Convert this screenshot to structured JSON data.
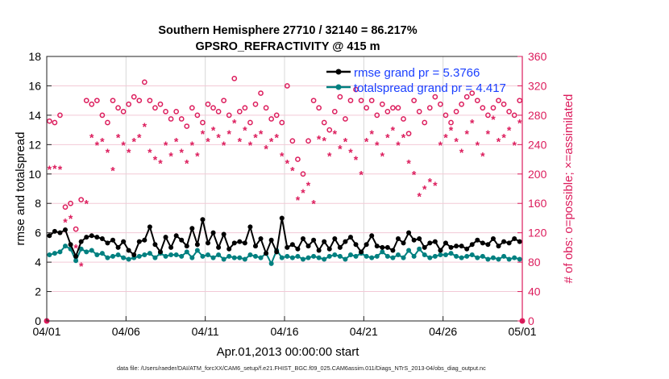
{
  "chart_data": {
    "type": "line",
    "title": [
      "Southern Hemisphere 27710 / 32140 = 86.217%",
      "GPSRO_REFRACTIVITY @ 415 m"
    ],
    "xlabel": "Apr.01,2013 00:00:00 start",
    "ylabel_left": "rmse and totalspread",
    "ylabel_right": "# of obs: o=possible; ×=assimilated",
    "xlim": [
      0,
      30
    ],
    "ylim_left": [
      0,
      18
    ],
    "ylim_right": [
      0,
      360
    ],
    "x_ticks": [
      {
        "day": 0,
        "label": "04/01"
      },
      {
        "day": 5,
        "label": "04/06"
      },
      {
        "day": 10,
        "label": "04/11"
      },
      {
        "day": 15,
        "label": "04/16"
      },
      {
        "day": 20,
        "label": "04/21"
      },
      {
        "day": 25,
        "label": "04/26"
      },
      {
        "day": 30,
        "label": "05/01"
      }
    ],
    "y_ticks_left": [
      "0",
      "2",
      "4",
      "6",
      "8",
      "10",
      "12",
      "14",
      "16",
      "18"
    ],
    "y_ticks_right": [
      "0",
      "40",
      "80",
      "120",
      "160",
      "200",
      "240",
      "280",
      "320",
      "360"
    ],
    "grid": "on",
    "legend_placement": "top-right",
    "x_start_day": 0.17,
    "x_step_day": 0.3333,
    "series": [
      {
        "name": "rmse grand pr = 5.3766",
        "axis": "left",
        "color": "#000000",
        "values": [
          5.8,
          6.1,
          6.0,
          6.2,
          5.2,
          4.4,
          5.4,
          5.7,
          5.8,
          5.7,
          5.6,
          5.3,
          5.5,
          5.0,
          5.4,
          4.8,
          4.5,
          5.4,
          5.5,
          6.4,
          5.2,
          4.7,
          5.7,
          5.0,
          5.8,
          5.5,
          5.1,
          6.3,
          5.2,
          6.9,
          5.3,
          6.0,
          5.0,
          5.9,
          4.9,
          5.3,
          5.4,
          5.3,
          6.4,
          5.1,
          5.6,
          4.6,
          5.5,
          4.7,
          7.0,
          5.0,
          5.2,
          4.9,
          5.6,
          5.1,
          5.5,
          4.8,
          5.4,
          4.9,
          5.6,
          5.0,
          5.4,
          5.7,
          5.2,
          4.7,
          5.2,
          5.8,
          5.1,
          5.0,
          5.0,
          4.8,
          5.6,
          5.3,
          6.0,
          5.5,
          5.6,
          5.0,
          5.3,
          5.4,
          4.8,
          5.3,
          5.0,
          5.1,
          5.1,
          4.9,
          5.2,
          5.5,
          5.3,
          5.2,
          5.6,
          5.1,
          5.4,
          5.3,
          5.6,
          5.4
        ]
      },
      {
        "name": "totalspread grand pr = 4.417",
        "axis": "left",
        "color": "#008080",
        "values": [
          4.5,
          4.6,
          4.7,
          5.1,
          4.9,
          4.1,
          4.9,
          4.7,
          4.8,
          4.5,
          4.6,
          4.3,
          4.4,
          4.5,
          4.3,
          4.2,
          4.3,
          4.4,
          4.5,
          4.6,
          4.3,
          4.6,
          4.4,
          4.5,
          4.5,
          4.4,
          4.7,
          4.3,
          4.8,
          4.4,
          4.5,
          4.3,
          4.5,
          4.2,
          4.4,
          4.3,
          4.3,
          4.2,
          4.5,
          4.4,
          4.3,
          4.6,
          3.9,
          4.8,
          4.3,
          4.4,
          4.3,
          4.4,
          4.2,
          4.3,
          4.4,
          4.3,
          4.2,
          4.4,
          4.5,
          4.4,
          4.2,
          4.5,
          4.4,
          4.6,
          4.4,
          4.3,
          4.4,
          4.7,
          4.4,
          4.3,
          4.5,
          4.3,
          4.8,
          4.4,
          4.9,
          4.5,
          4.3,
          4.4,
          4.5,
          4.5,
          4.6,
          4.4,
          4.3,
          4.4,
          4.5,
          4.3,
          4.4,
          4.2,
          4.3,
          4.2,
          4.4,
          4.2,
          4.3,
          4.2
        ]
      },
      {
        "name": "possible",
        "axis": "right",
        "marker": "o",
        "color": "#DC1C5C",
        "values": [
          272,
          270,
          280,
          155,
          160,
          125,
          165,
          300,
          295,
          300,
          280,
          270,
          300,
          290,
          285,
          295,
          305,
          300,
          325,
          300,
          290,
          295,
          285,
          275,
          285,
          275,
          265,
          290,
          280,
          270,
          295,
          290,
          285,
          300,
          280,
          330,
          285,
          290,
          270,
          295,
          310,
          290,
          275,
          280,
          270,
          320,
          245,
          220,
          200,
          245,
          300,
          290,
          270,
          260,
          285,
          305,
          275,
          300,
          315,
          300,
          290,
          300,
          280,
          295,
          285,
          290,
          290,
          275,
          255,
          300,
          285,
          270,
          290,
          305,
          295,
          280,
          270,
          285,
          295,
          305,
          310,
          300,
          290,
          280,
          290,
          300,
          295,
          285,
          280,
          300
        ]
      },
      {
        "name": "assimilated",
        "axis": "right",
        "marker": "*",
        "color": "#DC1C5C",
        "values": [
          207,
          208,
          207,
          135,
          140,
          100,
          75,
          160,
          250,
          240,
          245,
          230,
          205,
          250,
          240,
          230,
          245,
          250,
          265,
          230,
          220,
          215,
          240,
          225,
          245,
          230,
          215,
          240,
          225,
          255,
          245,
          260,
          250,
          240,
          255,
          270,
          245,
          260,
          240,
          250,
          255,
          235,
          245,
          250,
          225,
          215,
          205,
          165,
          175,
          185,
          160,
          248,
          246,
          225,
          255,
          235,
          245,
          230,
          220,
          200,
          245,
          255,
          240,
          225,
          250,
          260,
          240,
          250,
          215,
          200,
          170,
          180,
          190,
          185,
          240,
          250,
          260,
          245,
          230,
          255,
          270,
          240,
          225,
          255,
          275,
          245,
          250,
          260,
          240,
          270
        ]
      }
    ],
    "zero_marker_days": [
      0,
      30
    ]
  },
  "footer": "data file: /Users/raeder/DAI/ATM_forcXX/CAM6_setup/f.e21.FHIST_BGC.f09_025.CAM6assim.011/Diags_NTrS_2013-04/obs_diag_output.nc",
  "colors": {
    "accent": "#DC1C5C",
    "legend_text": "#1A3FFF",
    "rmse": "#000000",
    "spread": "#008080"
  }
}
